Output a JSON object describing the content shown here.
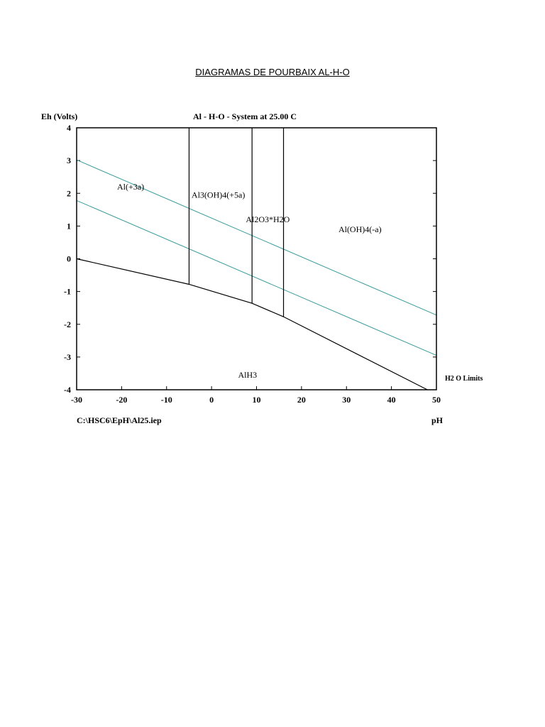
{
  "document": {
    "heading": "DIAGRAMAS DE POURBAIX AL-H-O"
  },
  "chart_data": {
    "type": "line",
    "title": "Al - H-O - System at 25.00 C",
    "ylabel": "Eh (Volts)",
    "xlabel": "pH",
    "footer": "C:\\HSC6\\EpH\\Al25.iep",
    "xlim": [
      -30,
      50
    ],
    "ylim": [
      -4,
      4
    ],
    "xticks": [
      -30,
      -20,
      -10,
      0,
      10,
      20,
      30,
      40,
      50
    ],
    "yticks": [
      4,
      3,
      2,
      1,
      0,
      -1,
      -2,
      -3,
      -4
    ],
    "grid": false,
    "colors": {
      "boundary": "#000000",
      "water": "#3a9a9a"
    },
    "water_limits": [
      {
        "x": [
          -30,
          50
        ],
        "y": [
          3.02,
          -1.72
        ]
      },
      {
        "x": [
          -30,
          50
        ],
        "y": [
          1.78,
          -2.95
        ]
      }
    ],
    "water_limits_label": "H2 O Limits",
    "boundaries": [
      {
        "x": [
          -30,
          -5,
          9,
          16,
          48
        ],
        "y": [
          0.0,
          -0.78,
          -1.36,
          -1.77,
          -4.0
        ]
      },
      {
        "x": [
          -5,
          -5
        ],
        "y": [
          -0.78,
          4
        ]
      },
      {
        "x": [
          9,
          9
        ],
        "y": [
          -1.36,
          4
        ]
      },
      {
        "x": [
          16,
          16
        ],
        "y": [
          -1.77,
          4
        ]
      }
    ],
    "regions": [
      {
        "label": "Al(+3a)",
        "x": -18,
        "y": 2.2
      },
      {
        "label": "Al3(OH)4(+5a)",
        "x": 1.5,
        "y": 1.95
      },
      {
        "label": "Al2O3*H2O",
        "x": 12.5,
        "y": 1.2
      },
      {
        "label": "Al(OH)4(-a)",
        "x": 33,
        "y": 0.9
      },
      {
        "label": "AlH3",
        "x": 8,
        "y": -3.55
      }
    ]
  }
}
